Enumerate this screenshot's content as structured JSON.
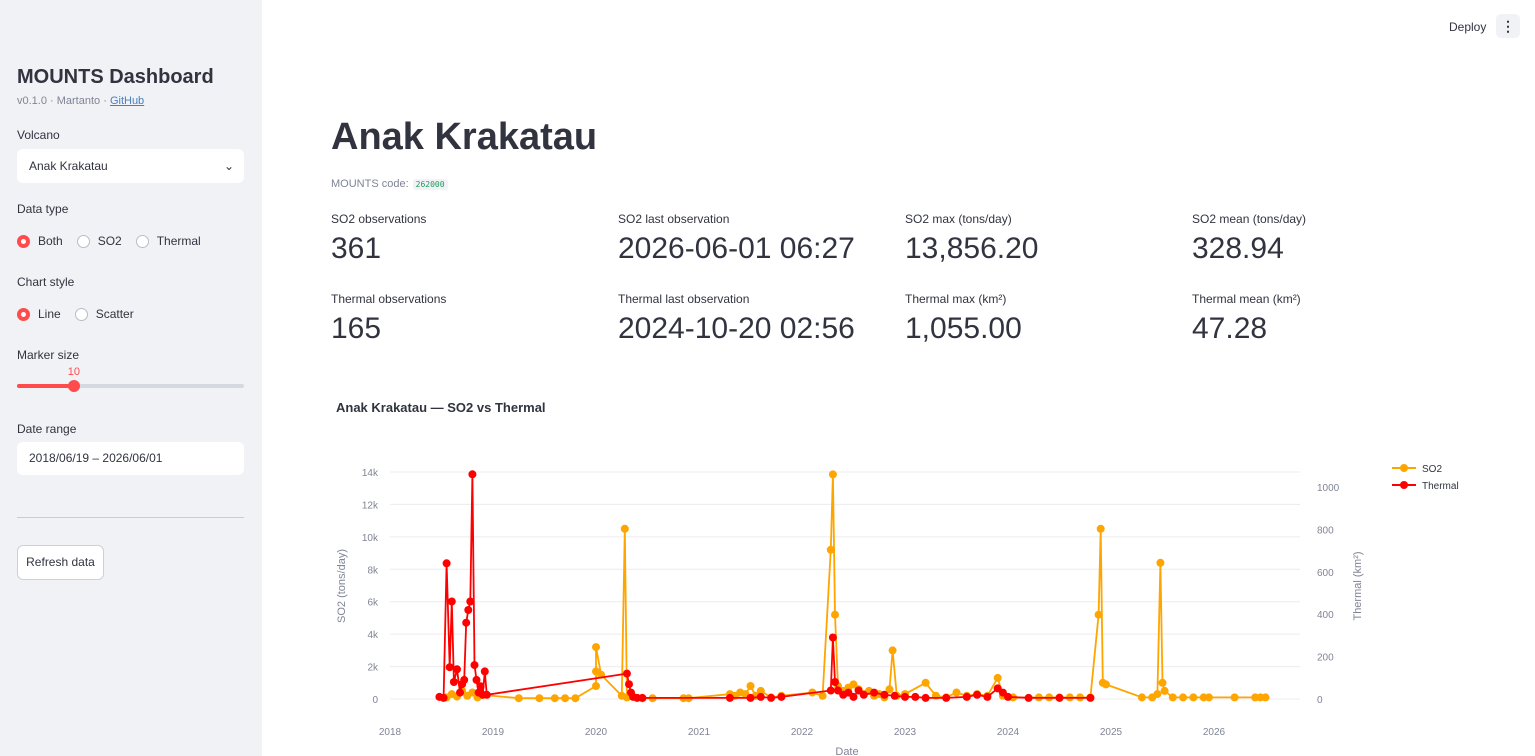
{
  "sidebar": {
    "title": "MOUNTS Dashboard",
    "subtitle_prefix": "v0.1.0 · Martanto · ",
    "github_link": "GitHub",
    "volcano_label": "Volcano",
    "volcano_value": "Anak Krakatau",
    "data_type_label": "Data type",
    "data_type_options": [
      "Both",
      "SO2",
      "Thermal"
    ],
    "data_type_selected": "Both",
    "chart_style_label": "Chart style",
    "chart_style_options": [
      "Line",
      "Scatter"
    ],
    "chart_style_selected": "Line",
    "marker_size_label": "Marker size",
    "marker_size_value": "10",
    "marker_size_fraction": 0.25,
    "date_range_label": "Date range",
    "date_range_value": "2018/06/19 – 2026/06/01",
    "refresh_label": "Refresh data"
  },
  "header": {
    "deploy_label": "Deploy",
    "menu_icon": "kebab-menu-icon"
  },
  "main": {
    "title": "Anak Krakatau",
    "code_label": "MOUNTS code:",
    "code_value": "262000",
    "metrics": [
      {
        "label": "SO2 observations",
        "value": "361"
      },
      {
        "label": "SO2 last observation",
        "value": "2026-06-01 06:27"
      },
      {
        "label": "SO2 max (tons/day)",
        "value": "13,856.20"
      },
      {
        "label": "SO2 mean (tons/day)",
        "value": "328.94"
      },
      {
        "label": "Thermal observations",
        "value": "165"
      },
      {
        "label": "Thermal last observation",
        "value": "2024-10-20 02:56"
      },
      {
        "label": "Thermal max (km²)",
        "value": "1,055.00"
      },
      {
        "label": "Thermal mean (km²)",
        "value": "47.28"
      }
    ]
  },
  "chart_data": {
    "type": "line",
    "title": "Anak Krakatau — SO2 vs Thermal",
    "xlabel": "Date",
    "ylabel": "SO2 (tons/day)",
    "y2label": "Thermal (km²)",
    "x_ticks": [
      "2018",
      "2019",
      "2020",
      "2021",
      "2022",
      "2023",
      "2024",
      "2025",
      "2026"
    ],
    "y_ticks": [
      "0",
      "2k",
      "4k",
      "6k",
      "8k",
      "10k",
      "12k",
      "14k"
    ],
    "y2_ticks": [
      "0",
      "200",
      "400",
      "600",
      "800",
      "1000"
    ],
    "ylim": [
      0,
      14000
    ],
    "y2lim": [
      0,
      1060
    ],
    "legend_position": "top-right",
    "grid": true,
    "series": [
      {
        "name": "SO2",
        "color": "#ffa500",
        "axis": "left",
        "points": [
          [
            2018.55,
            100
          ],
          [
            2018.6,
            300
          ],
          [
            2018.65,
            150
          ],
          [
            2018.7,
            500
          ],
          [
            2018.75,
            200
          ],
          [
            2018.8,
            400
          ],
          [
            2018.85,
            100
          ],
          [
            2018.9,
            250
          ],
          [
            2019.25,
            50
          ],
          [
            2019.45,
            50
          ],
          [
            2019.6,
            50
          ],
          [
            2019.7,
            50
          ],
          [
            2019.8,
            50
          ],
          [
            2020.0,
            800
          ],
          [
            2020.0,
            1700
          ],
          [
            2020.0,
            3200
          ],
          [
            2020.05,
            1500
          ],
          [
            2020.25,
            200
          ],
          [
            2020.28,
            10500
          ],
          [
            2020.3,
            100
          ],
          [
            2020.45,
            50
          ],
          [
            2020.55,
            50
          ],
          [
            2020.85,
            50
          ],
          [
            2020.9,
            50
          ],
          [
            2021.3,
            300
          ],
          [
            2021.35,
            200
          ],
          [
            2021.4,
            400
          ],
          [
            2021.45,
            300
          ],
          [
            2021.5,
            800
          ],
          [
            2021.55,
            200
          ],
          [
            2021.6,
            500
          ],
          [
            2021.7,
            100
          ],
          [
            2021.8,
            200
          ],
          [
            2022.1,
            400
          ],
          [
            2022.2,
            200
          ],
          [
            2022.28,
            9200
          ],
          [
            2022.3,
            13850
          ],
          [
            2022.32,
            5200
          ],
          [
            2022.35,
            800
          ],
          [
            2022.4,
            500
          ],
          [
            2022.45,
            700
          ],
          [
            2022.5,
            900
          ],
          [
            2022.55,
            600
          ],
          [
            2022.6,
            300
          ],
          [
            2022.65,
            500
          ],
          [
            2022.7,
            200
          ],
          [
            2022.75,
            300
          ],
          [
            2022.8,
            100
          ],
          [
            2022.85,
            600
          ],
          [
            2022.88,
            3000
          ],
          [
            2022.92,
            200
          ],
          [
            2023.0,
            300
          ],
          [
            2023.2,
            1000
          ],
          [
            2023.3,
            200
          ],
          [
            2023.4,
            100
          ],
          [
            2023.5,
            400
          ],
          [
            2023.6,
            200
          ],
          [
            2023.7,
            300
          ],
          [
            2023.8,
            200
          ],
          [
            2023.9,
            1300
          ],
          [
            2023.95,
            200
          ],
          [
            2024.05,
            100
          ],
          [
            2024.3,
            100
          ],
          [
            2024.4,
            100
          ],
          [
            2024.5,
            100
          ],
          [
            2024.6,
            100
          ],
          [
            2024.7,
            100
          ],
          [
            2024.8,
            100
          ],
          [
            2024.88,
            5200
          ],
          [
            2024.9,
            10500
          ],
          [
            2024.92,
            1000
          ],
          [
            2024.95,
            900
          ],
          [
            2025.3,
            100
          ],
          [
            2025.4,
            100
          ],
          [
            2025.45,
            300
          ],
          [
            2025.48,
            8400
          ],
          [
            2025.5,
            1000
          ],
          [
            2025.52,
            500
          ],
          [
            2025.6,
            100
          ],
          [
            2025.7,
            100
          ],
          [
            2025.8,
            100
          ],
          [
            2025.9,
            100
          ],
          [
            2025.95,
            100
          ],
          [
            2026.2,
            100
          ],
          [
            2026.4,
            100
          ],
          [
            2026.45,
            100
          ],
          [
            2026.5,
            100
          ]
        ]
      },
      {
        "name": "Thermal",
        "color": "#ff0000",
        "axis": "right",
        "points": [
          [
            2018.48,
            10
          ],
          [
            2018.52,
            5
          ],
          [
            2018.55,
            640
          ],
          [
            2018.58,
            150
          ],
          [
            2018.6,
            460
          ],
          [
            2018.62,
            80
          ],
          [
            2018.65,
            140
          ],
          [
            2018.68,
            30
          ],
          [
            2018.7,
            70
          ],
          [
            2018.72,
            90
          ],
          [
            2018.74,
            360
          ],
          [
            2018.76,
            420
          ],
          [
            2018.78,
            460
          ],
          [
            2018.8,
            1060
          ],
          [
            2018.82,
            160
          ],
          [
            2018.84,
            90
          ],
          [
            2018.86,
            30
          ],
          [
            2018.88,
            60
          ],
          [
            2018.9,
            20
          ],
          [
            2018.92,
            130
          ],
          [
            2018.94,
            20
          ],
          [
            2020.3,
            120
          ],
          [
            2020.32,
            70
          ],
          [
            2020.34,
            30
          ],
          [
            2020.36,
            10
          ],
          [
            2020.4,
            5
          ],
          [
            2020.45,
            5
          ],
          [
            2021.3,
            5
          ],
          [
            2021.5,
            5
          ],
          [
            2021.6,
            10
          ],
          [
            2021.7,
            5
          ],
          [
            2021.8,
            10
          ],
          [
            2022.28,
            40
          ],
          [
            2022.3,
            290
          ],
          [
            2022.32,
            80
          ],
          [
            2022.35,
            40
          ],
          [
            2022.4,
            20
          ],
          [
            2022.45,
            30
          ],
          [
            2022.5,
            10
          ],
          [
            2022.55,
            40
          ],
          [
            2022.6,
            20
          ],
          [
            2022.7,
            30
          ],
          [
            2022.8,
            20
          ],
          [
            2022.9,
            15
          ],
          [
            2023.0,
            10
          ],
          [
            2023.1,
            10
          ],
          [
            2023.2,
            5
          ],
          [
            2023.4,
            5
          ],
          [
            2023.6,
            10
          ],
          [
            2023.7,
            20
          ],
          [
            2023.8,
            10
          ],
          [
            2023.9,
            50
          ],
          [
            2023.95,
            30
          ],
          [
            2024.0,
            10
          ],
          [
            2024.2,
            5
          ],
          [
            2024.5,
            5
          ],
          [
            2024.8,
            5
          ]
        ]
      }
    ]
  }
}
